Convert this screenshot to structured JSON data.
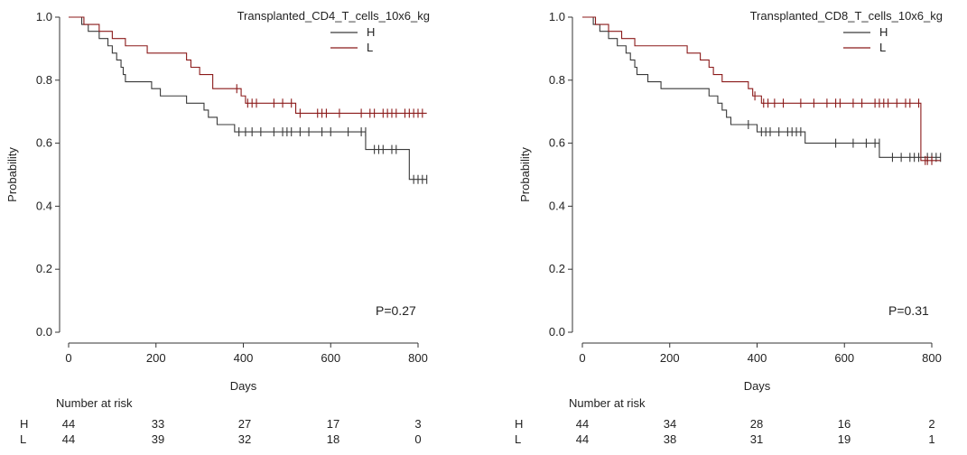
{
  "colors": {
    "H": "#3a3a3a",
    "L": "#8b1a1a",
    "axis": "#333333",
    "text": "#222222"
  },
  "chart_data": [
    {
      "type": "line",
      "subtype": "kaplan-meier",
      "title": "Transplanted_CD4_T_cells_10x6_kg",
      "xlabel": "Days",
      "ylabel": "Probability",
      "xlim": [
        -15,
        830
      ],
      "ylim": [
        -0.02,
        1.03
      ],
      "xticks": [
        0,
        200,
        400,
        600,
        800
      ],
      "yticks": [
        0.0,
        0.2,
        0.4,
        0.6,
        0.8,
        1.0
      ],
      "grid": false,
      "legend_position": "top-right",
      "p_value": "P=0.27",
      "series": [
        {
          "name": "H",
          "color": "#3a3a3a",
          "steps": [
            [
              0,
              1.0
            ],
            [
              30,
              0.977
            ],
            [
              45,
              0.955
            ],
            [
              70,
              0.932
            ],
            [
              90,
              0.909
            ],
            [
              100,
              0.886
            ],
            [
              110,
              0.864
            ],
            [
              120,
              0.841
            ],
            [
              125,
              0.818
            ],
            [
              130,
              0.795
            ],
            [
              190,
              0.773
            ],
            [
              210,
              0.75
            ],
            [
              270,
              0.727
            ],
            [
              310,
              0.705
            ],
            [
              320,
              0.682
            ],
            [
              340,
              0.659
            ],
            [
              380,
              0.636
            ],
            [
              680,
              0.58
            ],
            [
              780,
              0.485
            ],
            [
              820,
              0.485
            ]
          ],
          "censors": [
            [
              390,
              0.636
            ],
            [
              405,
              0.636
            ],
            [
              420,
              0.636
            ],
            [
              440,
              0.636
            ],
            [
              470,
              0.636
            ],
            [
              490,
              0.636
            ],
            [
              500,
              0.636
            ],
            [
              510,
              0.636
            ],
            [
              530,
              0.636
            ],
            [
              550,
              0.636
            ],
            [
              580,
              0.636
            ],
            [
              600,
              0.636
            ],
            [
              640,
              0.636
            ],
            [
              670,
              0.636
            ],
            [
              680,
              0.636
            ],
            [
              700,
              0.58
            ],
            [
              710,
              0.58
            ],
            [
              720,
              0.58
            ],
            [
              740,
              0.58
            ],
            [
              750,
              0.58
            ],
            [
              790,
              0.485
            ],
            [
              800,
              0.485
            ],
            [
              810,
              0.485
            ],
            [
              820,
              0.485
            ]
          ]
        },
        {
          "name": "L",
          "color": "#8b1a1a",
          "steps": [
            [
              0,
              1.0
            ],
            [
              35,
              0.977
            ],
            [
              70,
              0.955
            ],
            [
              100,
              0.932
            ],
            [
              130,
              0.909
            ],
            [
              180,
              0.886
            ],
            [
              270,
              0.864
            ],
            [
              280,
              0.841
            ],
            [
              300,
              0.818
            ],
            [
              330,
              0.773
            ],
            [
              395,
              0.75
            ],
            [
              405,
              0.727
            ],
            [
              520,
              0.695
            ],
            [
              820,
              0.695
            ]
          ],
          "censors": [
            [
              385,
              0.773
            ],
            [
              410,
              0.727
            ],
            [
              420,
              0.727
            ],
            [
              430,
              0.727
            ],
            [
              470,
              0.727
            ],
            [
              490,
              0.727
            ],
            [
              510,
              0.727
            ],
            [
              530,
              0.695
            ],
            [
              570,
              0.695
            ],
            [
              580,
              0.695
            ],
            [
              590,
              0.695
            ],
            [
              620,
              0.695
            ],
            [
              670,
              0.695
            ],
            [
              690,
              0.695
            ],
            [
              700,
              0.695
            ],
            [
              720,
              0.695
            ],
            [
              730,
              0.695
            ],
            [
              740,
              0.695
            ],
            [
              750,
              0.695
            ],
            [
              770,
              0.695
            ],
            [
              780,
              0.695
            ],
            [
              790,
              0.695
            ],
            [
              800,
              0.695
            ],
            [
              810,
              0.695
            ]
          ]
        }
      ],
      "risk_table": {
        "title": "Number at risk",
        "times": [
          0,
          200,
          400,
          600,
          800
        ],
        "rows": [
          {
            "label": "H",
            "values": [
              44,
              33,
              27,
              17,
              3
            ]
          },
          {
            "label": "L",
            "values": [
              44,
              39,
              32,
              18,
              0
            ]
          }
        ]
      }
    },
    {
      "type": "line",
      "subtype": "kaplan-meier",
      "title": "Transplanted_CD8_T_cells_10x6_kg",
      "xlabel": "Days",
      "ylabel": "Probability",
      "xlim": [
        -15,
        830
      ],
      "ylim": [
        -0.02,
        1.03
      ],
      "xticks": [
        0,
        200,
        400,
        600,
        800
      ],
      "yticks": [
        0.0,
        0.2,
        0.4,
        0.6,
        0.8,
        1.0
      ],
      "grid": false,
      "legend_position": "top-right",
      "p_value": "P=0.31",
      "series": [
        {
          "name": "H",
          "color": "#3a3a3a",
          "steps": [
            [
              0,
              1.0
            ],
            [
              25,
              0.977
            ],
            [
              40,
              0.955
            ],
            [
              60,
              0.932
            ],
            [
              80,
              0.909
            ],
            [
              100,
              0.886
            ],
            [
              110,
              0.864
            ],
            [
              120,
              0.841
            ],
            [
              125,
              0.818
            ],
            [
              150,
              0.795
            ],
            [
              180,
              0.773
            ],
            [
              290,
              0.75
            ],
            [
              310,
              0.727
            ],
            [
              320,
              0.705
            ],
            [
              330,
              0.682
            ],
            [
              340,
              0.659
            ],
            [
              400,
              0.636
            ],
            [
              510,
              0.6
            ],
            [
              680,
              0.555
            ],
            [
              820,
              0.555
            ]
          ],
          "censors": [
            [
              380,
              0.659
            ],
            [
              410,
              0.636
            ],
            [
              420,
              0.636
            ],
            [
              430,
              0.636
            ],
            [
              450,
              0.636
            ],
            [
              470,
              0.636
            ],
            [
              480,
              0.636
            ],
            [
              490,
              0.636
            ],
            [
              500,
              0.636
            ],
            [
              580,
              0.6
            ],
            [
              620,
              0.6
            ],
            [
              650,
              0.6
            ],
            [
              670,
              0.6
            ],
            [
              680,
              0.6
            ],
            [
              710,
              0.555
            ],
            [
              730,
              0.555
            ],
            [
              750,
              0.555
            ],
            [
              760,
              0.555
            ],
            [
              770,
              0.555
            ],
            [
              790,
              0.555
            ],
            [
              800,
              0.555
            ],
            [
              810,
              0.555
            ],
            [
              820,
              0.555
            ]
          ]
        },
        {
          "name": "L",
          "color": "#8b1a1a",
          "steps": [
            [
              0,
              1.0
            ],
            [
              30,
              0.977
            ],
            [
              60,
              0.955
            ],
            [
              90,
              0.932
            ],
            [
              120,
              0.909
            ],
            [
              240,
              0.886
            ],
            [
              270,
              0.864
            ],
            [
              290,
              0.841
            ],
            [
              300,
              0.818
            ],
            [
              320,
              0.795
            ],
            [
              380,
              0.773
            ],
            [
              390,
              0.75
            ],
            [
              410,
              0.727
            ],
            [
              775,
              0.545
            ],
            [
              820,
              0.545
            ]
          ],
          "censors": [
            [
              395,
              0.75
            ],
            [
              415,
              0.727
            ],
            [
              425,
              0.727
            ],
            [
              440,
              0.727
            ],
            [
              460,
              0.727
            ],
            [
              500,
              0.727
            ],
            [
              530,
              0.727
            ],
            [
              560,
              0.727
            ],
            [
              580,
              0.727
            ],
            [
              590,
              0.727
            ],
            [
              620,
              0.727
            ],
            [
              640,
              0.727
            ],
            [
              670,
              0.727
            ],
            [
              680,
              0.727
            ],
            [
              690,
              0.727
            ],
            [
              700,
              0.727
            ],
            [
              720,
              0.727
            ],
            [
              740,
              0.727
            ],
            [
              750,
              0.727
            ],
            [
              770,
              0.727
            ],
            [
              785,
              0.545
            ],
            [
              790,
              0.545
            ],
            [
              800,
              0.545
            ]
          ]
        }
      ],
      "risk_table": {
        "title": "Number at risk",
        "times": [
          0,
          200,
          400,
          600,
          800
        ],
        "rows": [
          {
            "label": "H",
            "values": [
              44,
              34,
              28,
              16,
              2
            ]
          },
          {
            "label": "L",
            "values": [
              44,
              38,
              31,
              19,
              1
            ]
          }
        ]
      }
    }
  ]
}
